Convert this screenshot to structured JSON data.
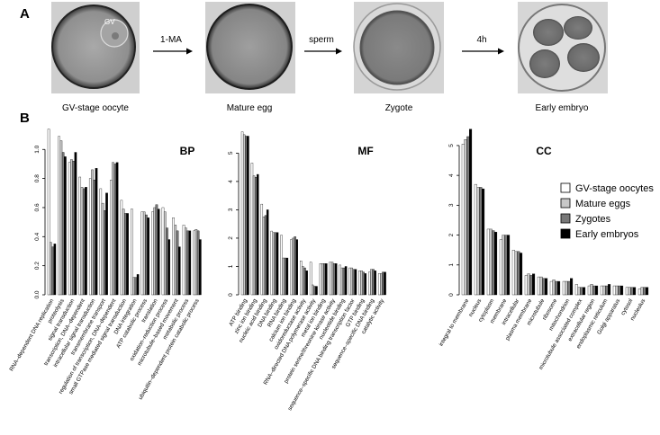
{
  "panel_a": {
    "label": "A",
    "stages": [
      {
        "name": "GV-stage oocyte",
        "inner_label": "GV"
      },
      {
        "name": "Mature egg"
      },
      {
        "name": "Zygote"
      },
      {
        "name": "Early embryo"
      }
    ],
    "arrows": [
      "1-MA",
      "sperm",
      "4h"
    ]
  },
  "panel_b": {
    "label": "B"
  },
  "legend": [
    "GV-stage oocytes",
    "Mature eggs",
    "Zygotes",
    "Early embryos"
  ],
  "colors": [
    "#ffffff",
    "#c8c8c8",
    "#787878",
    "#000000"
  ],
  "chart_data": [
    {
      "type": "bar",
      "title": "BP",
      "ylim": [
        0,
        1.15
      ],
      "yticks": [
        "0.0",
        "0.2",
        "0.4",
        "0.6",
        "0.8",
        "1.0"
      ],
      "ytick_values": [
        0,
        0.2,
        0.4,
        0.6,
        0.8,
        1.0
      ],
      "categories": [
        "RNA–dependent DNA replication",
        "proteolysis",
        "signal transduction",
        "transcription, DNA–dependent",
        "intracellular signal transduction",
        "transmembrane transport",
        "regulation of transcription, DNA–dependent",
        "small GTPase mediated signal transduction",
        "DNA integration",
        "ATP catabolic process",
        "translation",
        "oxidation–reduction process",
        "microtubule–based movement",
        "metabolic process",
        "ubiquitin–dependent protein catabolic process"
      ],
      "series": [
        {
          "name": "GV-stage oocytes",
          "values": [
            1.14,
            1.09,
            0.91,
            0.81,
            0.8,
            0.73,
            0.79,
            0.65,
            0.59,
            0.57,
            0.57,
            0.6,
            0.53,
            0.48,
            0.44
          ]
        },
        {
          "name": "Mature eggs",
          "values": [
            0.36,
            1.06,
            0.93,
            0.74,
            0.86,
            0.63,
            0.91,
            0.59,
            0.12,
            0.57,
            0.6,
            0.57,
            0.48,
            0.46,
            0.45
          ]
        },
        {
          "name": "Zygotes",
          "values": [
            0.33,
            0.98,
            0.92,
            0.73,
            0.79,
            0.58,
            0.9,
            0.56,
            0.12,
            0.55,
            0.62,
            0.46,
            0.44,
            0.44,
            0.44
          ]
        },
        {
          "name": "Early embryos",
          "values": [
            0.35,
            0.95,
            0.98,
            0.74,
            0.87,
            0.7,
            0.91,
            0.56,
            0.14,
            0.53,
            0.59,
            0.38,
            0.33,
            0.44,
            0.38
          ]
        }
      ]
    },
    {
      "type": "bar",
      "title": "MF",
      "ylim": [
        0,
        5.9
      ],
      "yticks": [
        "0",
        "1",
        "2",
        "3",
        "4",
        "5"
      ],
      "ytick_values": [
        0,
        1,
        2,
        3,
        4,
        5
      ],
      "categories": [
        "ATP binding",
        "zinc ion binding",
        "nucleic acid binding",
        "DNA binding",
        "RNA binding",
        "calcium ion binding",
        "oxidoreductase activity",
        "RNA–directed DNA polymerase activity",
        "metal ion binding",
        "protein serine/threonine kinase activity",
        "nucleotide binding",
        "sequence–specific DNA binding transcription factor",
        "GTP binding",
        "sequence–specific DNA binding",
        "catalytic activity"
      ],
      "series": [
        {
          "name": "GV-stage oocytes",
          "values": [
            5.75,
            4.65,
            3.2,
            2.25,
            2.1,
            1.95,
            1.2,
            1.15,
            1.1,
            1.15,
            1.05,
            0.95,
            0.85,
            0.8,
            0.75
          ]
        },
        {
          "name": "Mature eggs",
          "values": [
            5.65,
            4.2,
            2.75,
            2.2,
            1.3,
            2.0,
            1.0,
            0.35,
            1.1,
            1.15,
            0.95,
            0.95,
            0.85,
            0.9,
            0.75
          ]
        },
        {
          "name": "Zygotes",
          "values": [
            5.6,
            4.15,
            2.8,
            2.2,
            1.3,
            2.05,
            0.95,
            0.3,
            1.1,
            1.1,
            0.95,
            0.9,
            0.8,
            0.9,
            0.8
          ]
        },
        {
          "name": "Early embryos",
          "values": [
            5.6,
            4.25,
            3.0,
            2.2,
            1.3,
            1.95,
            0.85,
            0.3,
            1.1,
            1.1,
            1.0,
            0.9,
            0.75,
            0.85,
            0.8
          ]
        }
      ]
    },
    {
      "type": "bar",
      "title": "CC",
      "ylim": [
        0,
        5.6
      ],
      "yticks": [
        "0",
        "1",
        "2",
        "3",
        "4",
        "5"
      ],
      "ytick_values": [
        0,
        1,
        2,
        3,
        4,
        5
      ],
      "categories": [
        "integral to membrane",
        "nucleus",
        "cytoplasm",
        "membrane",
        "intracellular",
        "plasma membrane",
        "microtubule",
        "ribosome",
        "mitochondrion",
        "microtubule associated complex",
        "extracellular region",
        "endoplasmic reticulum",
        "Golgi apparatus",
        "cytosol",
        "nucleolus"
      ],
      "series": [
        {
          "name": "GV-stage oocytes",
          "values": [
            5.05,
            3.7,
            2.2,
            1.85,
            1.5,
            0.65,
            0.6,
            0.45,
            0.45,
            0.35,
            0.3,
            0.3,
            0.3,
            0.25,
            0.2
          ]
        },
        {
          "name": "Mature eggs",
          "values": [
            5.2,
            3.6,
            2.2,
            2.0,
            1.45,
            0.7,
            0.6,
            0.5,
            0.45,
            0.25,
            0.35,
            0.3,
            0.3,
            0.25,
            0.25
          ]
        },
        {
          "name": "Zygotes",
          "values": [
            5.3,
            3.6,
            2.15,
            2.0,
            1.45,
            0.65,
            0.55,
            0.45,
            0.45,
            0.25,
            0.3,
            0.3,
            0.3,
            0.25,
            0.25
          ]
        },
        {
          "name": "Early embryos",
          "values": [
            5.55,
            3.55,
            2.1,
            2.0,
            1.4,
            0.7,
            0.55,
            0.45,
            0.55,
            0.25,
            0.3,
            0.35,
            0.3,
            0.25,
            0.25
          ]
        }
      ]
    }
  ]
}
